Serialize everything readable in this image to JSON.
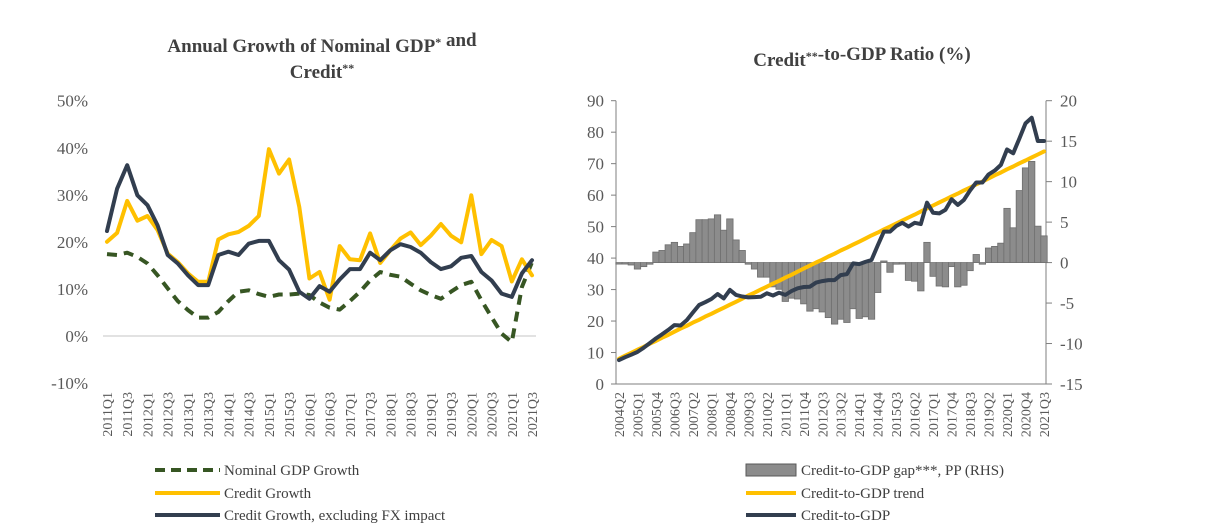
{
  "chart_data": [
    {
      "type": "line",
      "title": "Annual Growth of Nominal GDP* and Credit**",
      "title_lines": [
        "Annual Growth of Nominal GDP* and",
        "Credit**"
      ],
      "xlabel": "",
      "ylabel": "",
      "ylim": [
        -10,
        50
      ],
      "yticks": [
        -10,
        0,
        10,
        20,
        30,
        40,
        50
      ],
      "ytick_labels": [
        "-10%",
        "0%",
        "10%",
        "20%",
        "30%",
        "40%",
        "50%"
      ],
      "x_start": "2011Q1",
      "x_count": 43,
      "x_tick_every": 2,
      "x_tick_labels": [
        "2011Q1",
        "2011Q3",
        "2012Q1",
        "2012Q3",
        "2013Q1",
        "2013Q3",
        "2014Q1",
        "2014Q3",
        "2015Q1",
        "2015Q3",
        "2016Q1",
        "2016Q3",
        "2017Q1",
        "2017Q3",
        "2018Q1",
        "2018Q3",
        "2019Q1",
        "2019Q3",
        "2020Q1",
        "2020Q3",
        "2021Q1",
        "2021Q3"
      ],
      "grid": false,
      "legend_placement": "bottom",
      "series": [
        {
          "name": "Nominal GDP Growth",
          "color": "#375623",
          "style": "dashed",
          "values": [
            17.4,
            17.2,
            17.7,
            16.8,
            15.4,
            12.9,
            10.1,
            7.4,
            5.5,
            3.9,
            3.9,
            5.1,
            7.4,
            9.4,
            9.7,
            8.9,
            8.3,
            8.8,
            8.8,
            9.0,
            8.7,
            7.1,
            6.0,
            5.6,
            7.4,
            9.4,
            11.8,
            13.6,
            13.0,
            12.6,
            11.1,
            9.7,
            8.7,
            7.9,
            9.4,
            10.8,
            11.5,
            7.6,
            4.0,
            0.5,
            -1.3,
            10.4,
            15.7
          ]
        },
        {
          "name": "Credit Growth",
          "color": "#FFC000",
          "style": "solid",
          "values": [
            20.0,
            21.9,
            28.7,
            24.5,
            25.5,
            22.5,
            17.5,
            15.7,
            13.3,
            11.5,
            11.5,
            20.5,
            21.6,
            22.1,
            23.4,
            25.5,
            39.7,
            34.5,
            37.5,
            27.4,
            12.2,
            13.6,
            7.7,
            19.1,
            16.3,
            16.1,
            21.8,
            15.5,
            18.2,
            20.7,
            22.0,
            19.3,
            21.3,
            23.8,
            21.3,
            19.9,
            29.9,
            17.4,
            20.4,
            19.1,
            11.6,
            16.3,
            12.9
          ]
        },
        {
          "name": "Credit Growth, excluding FX impact",
          "color": "#323E4F",
          "style": "solid",
          "values": [
            22.3,
            31.3,
            36.3,
            29.9,
            27.8,
            23.5,
            17.2,
            15.4,
            12.9,
            10.8,
            10.8,
            17.2,
            17.9,
            17.2,
            19.6,
            20.2,
            20.2,
            16.1,
            14.1,
            9.4,
            7.9,
            10.6,
            9.4,
            12.0,
            14.2,
            14.2,
            17.7,
            16.1,
            18.2,
            19.5,
            18.9,
            17.7,
            15.7,
            14.2,
            14.8,
            16.6,
            17.0,
            13.6,
            11.8,
            9.0,
            8.3,
            13.3,
            16.1
          ]
        }
      ]
    },
    {
      "type": "bar+line",
      "title": "Credit**-to-GDP Ratio (%)",
      "xlabel": "",
      "ylabel": "",
      "ylim": [
        0,
        90
      ],
      "yticks": [
        0,
        10,
        20,
        30,
        40,
        50,
        60,
        70,
        80,
        90
      ],
      "ytick_labels": [
        "0",
        "10",
        "20",
        "30",
        "40",
        "50",
        "60",
        "70",
        "80",
        "90"
      ],
      "y2lim": [
        -15,
        20
      ],
      "y2ticks": [
        -15,
        -10,
        -5,
        0,
        5,
        10,
        15,
        20
      ],
      "y2tick_labels": [
        "-15",
        "-10",
        "-5",
        "0",
        "5",
        "10",
        "15",
        "20"
      ],
      "x_start": "2004Q2",
      "x_count": 70,
      "x_tick_every": 3,
      "x_tick_labels": [
        "2004Q2",
        "2005Q1",
        "2005Q4",
        "2006Q3",
        "2007Q2",
        "2008Q1",
        "2008Q4",
        "2009Q3",
        "2010Q2",
        "2011Q1",
        "2011Q4",
        "2012Q3",
        "2013Q2",
        "2014Q1",
        "2014Q4",
        "2015Q3",
        "2016Q2",
        "2017Q1",
        "2017Q4",
        "2018Q3",
        "2019Q2",
        "2020Q1",
        "2020Q4",
        "2021Q3"
      ],
      "grid": false,
      "legend_placement": "bottom",
      "series": [
        {
          "name": "Credit-to-GDP gap***, PP (RHS)",
          "type": "bar",
          "axis": "right",
          "color": "#8C8C8C",
          "values": [
            -0.1,
            -0.1,
            -0.3,
            -0.8,
            -0.5,
            -0.2,
            1.3,
            1.5,
            2.2,
            2.5,
            2.0,
            2.3,
            3.7,
            5.3,
            5.3,
            5.4,
            5.9,
            4.0,
            5.4,
            2.8,
            1.5,
            -0.2,
            -0.8,
            -1.8,
            -1.8,
            -3.0,
            -3.3,
            -4.8,
            -4.4,
            -4.5,
            -5.1,
            -6.0,
            -5.7,
            -6.1,
            -6.8,
            -7.6,
            -7.0,
            -7.4,
            -5.7,
            -6.9,
            -6.7,
            -7.0,
            -3.7,
            0.2,
            -1.2,
            -0.2,
            -0.1,
            -2.2,
            -2.3,
            -3.5,
            2.5,
            -1.7,
            -2.9,
            -3.0,
            -0.5,
            -3.0,
            -2.8,
            -1.0,
            1.0,
            -0.2,
            1.8,
            2.0,
            2.4,
            6.7,
            4.3,
            8.9,
            11.7,
            12.5,
            4.5,
            3.3
          ]
        },
        {
          "name": "Credit-to-GDP trend",
          "type": "line",
          "axis": "left",
          "color": "#FFC000",
          "values": [
            8.0,
            9.0,
            9.9,
            10.9,
            11.8,
            12.8,
            13.7,
            14.7,
            15.6,
            16.6,
            17.6,
            18.5,
            19.5,
            20.4,
            21.4,
            22.3,
            23.3,
            24.2,
            25.2,
            26.1,
            27.1,
            28.1,
            29.0,
            30.0,
            30.9,
            31.9,
            32.8,
            33.8,
            34.7,
            35.7,
            36.7,
            37.6,
            38.6,
            39.5,
            40.5,
            41.4,
            42.4,
            43.3,
            44.3,
            45.2,
            46.2,
            47.2,
            48.1,
            49.1,
            50.0,
            51.0,
            51.9,
            52.9,
            53.8,
            54.8,
            55.8,
            56.7,
            57.7,
            58.6,
            59.6,
            60.5,
            61.5,
            62.4,
            63.4,
            64.3,
            65.3,
            66.3,
            67.2,
            68.2,
            69.1,
            70.1,
            71.0,
            72.0,
            72.9,
            73.9
          ]
        },
        {
          "name": "Credit-to-GDP",
          "type": "line",
          "axis": "left",
          "color": "#323E4F",
          "values": [
            7.6,
            8.5,
            9.3,
            10.2,
            11.5,
            13.0,
            14.5,
            15.8,
            17.2,
            18.7,
            18.6,
            20.3,
            22.7,
            25.1,
            26.0,
            27.0,
            28.6,
            27.2,
            29.9,
            28.3,
            27.8,
            27.5,
            27.6,
            27.7,
            28.8,
            28.1,
            29.0,
            28.3,
            29.5,
            30.4,
            30.8,
            30.9,
            32.2,
            32.7,
            33.0,
            33.0,
            34.6,
            34.9,
            38.3,
            38.1,
            38.8,
            39.4,
            44.0,
            48.4,
            48.4,
            50.2,
            51.2,
            50.0,
            51.2,
            50.8,
            57.6,
            54.4,
            54.2,
            55.3,
            58.7,
            56.9,
            58.5,
            61.5,
            64.0,
            64.0,
            66.6,
            67.8,
            69.6,
            74.5,
            73.3,
            78.0,
            82.8,
            84.6,
            77.2,
            77.2
          ]
        }
      ]
    }
  ]
}
